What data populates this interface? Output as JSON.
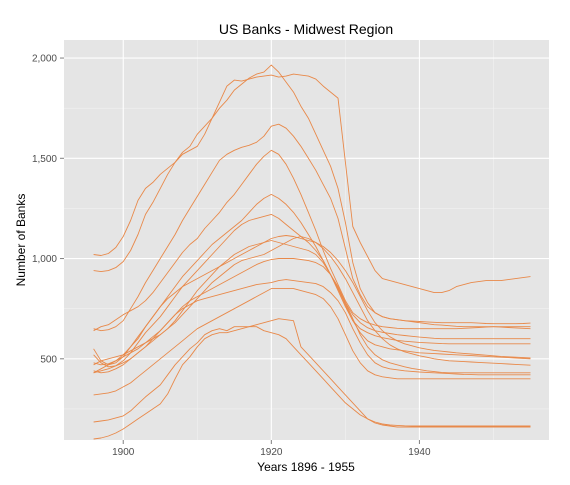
{
  "chart_data": {
    "type": "line",
    "title": "US Banks - Midwest Region",
    "xlabel": "Years 1896 - 1955",
    "ylabel": "Number of Banks",
    "xlim": [
      1892,
      1957.5
    ],
    "ylim": [
      95,
      2090
    ],
    "x_ticks": [
      1900,
      1920,
      1940
    ],
    "x_tick_labels": [
      "1900",
      "1920",
      "1940"
    ],
    "y_ticks": [
      500,
      1000,
      1500,
      2000
    ],
    "y_tick_labels": [
      "500",
      "1,000",
      "1,500",
      "2,000"
    ],
    "grid": true,
    "legend": "none",
    "line_color": "#e8894a",
    "panel_color": "#e5e5e5",
    "grid_color": "#ffffff",
    "x": [
      1896,
      1897,
      1898,
      1899,
      1900,
      1901,
      1902,
      1903,
      1904,
      1905,
      1906,
      1907,
      1908,
      1909,
      1910,
      1911,
      1912,
      1913,
      1914,
      1915,
      1916,
      1917,
      1918,
      1919,
      1920,
      1921,
      1922,
      1923,
      1924,
      1925,
      1926,
      1927,
      1928,
      1929,
      1930,
      1931,
      1932,
      1933,
      1934,
      1935,
      1936,
      1937,
      1938,
      1939,
      1940,
      1941,
      1942,
      1943,
      1944,
      1945,
      1946,
      1947,
      1948,
      1949,
      1950,
      1951,
      1952,
      1953,
      1954,
      1955
    ],
    "series": [
      {
        "values": [
          1020,
          1015,
          1025,
          1055,
          1110,
          1190,
          1290,
          1350,
          1380,
          1420,
          1450,
          1480,
          1520,
          1540,
          1560,
          1620,
          1700,
          1780,
          1860,
          1890,
          1885,
          1895,
          1905,
          1910,
          1915,
          1905,
          1910,
          1920,
          1915,
          1910,
          1895,
          1860,
          1830,
          1800,
          1480,
          1160,
          1080,
          1010,
          940,
          900,
          890,
          880,
          870,
          860,
          850,
          840,
          830,
          830,
          840,
          860,
          870,
          880,
          885,
          890,
          890,
          890,
          895,
          900,
          905,
          910
        ]
      },
      {
        "values": [
          940,
          935,
          940,
          955,
          985,
          1040,
          1120,
          1220,
          1280,
          1350,
          1420,
          1480,
          1530,
          1560,
          1620,
          1660,
          1700,
          1750,
          1790,
          1840,
          1870,
          1900,
          1920,
          1930,
          1965,
          1930,
          1880,
          1830,
          1760,
          1700,
          1620,
          1540,
          1460,
          1350,
          1180,
          980,
          850,
          780,
          730,
          710,
          700,
          695,
          690,
          685,
          680,
          675,
          670,
          668,
          665,
          662,
          660,
          660,
          660,
          660,
          660,
          658,
          656,
          654,
          652,
          650
        ]
      },
      {
        "values": [
          650,
          640,
          645,
          660,
          690,
          750,
          810,
          880,
          940,
          1000,
          1060,
          1120,
          1190,
          1250,
          1310,
          1370,
          1430,
          1490,
          1520,
          1540,
          1555,
          1565,
          1580,
          1610,
          1660,
          1670,
          1650,
          1610,
          1560,
          1500,
          1440,
          1370,
          1300,
          1200,
          1050,
          900,
          820,
          760,
          730,
          710,
          700,
          695,
          690,
          688,
          686,
          684,
          682,
          680,
          680,
          680,
          680,
          680,
          678,
          676,
          675,
          675,
          675,
          675,
          676,
          678
        ]
      },
      {
        "values": [
          640,
          660,
          670,
          695,
          720,
          740,
          760,
          790,
          830,
          880,
          930,
          980,
          1030,
          1070,
          1100,
          1150,
          1190,
          1230,
          1280,
          1320,
          1370,
          1420,
          1470,
          1510,
          1540,
          1520,
          1470,
          1400,
          1320,
          1230,
          1140,
          1040,
          950,
          870,
          790,
          730,
          700,
          680,
          668,
          660,
          656,
          652,
          650,
          650,
          650,
          650,
          650,
          650,
          650,
          650,
          652,
          654,
          656,
          658,
          660,
          660,
          660,
          660,
          660,
          660
        ]
      },
      {
        "values": [
          550,
          490,
          470,
          480,
          510,
          560,
          600,
          660,
          710,
          760,
          810,
          860,
          910,
          950,
          990,
          1030,
          1070,
          1100,
          1130,
          1160,
          1190,
          1230,
          1270,
          1300,
          1320,
          1300,
          1270,
          1230,
          1180,
          1120,
          1060,
          990,
          920,
          850,
          780,
          720,
          680,
          655,
          640,
          632,
          626,
          620,
          616,
          612,
          608,
          605,
          602,
          600,
          600,
          600,
          600,
          600,
          600,
          600,
          600,
          600,
          600,
          600,
          600,
          600
        ]
      },
      {
        "values": [
          520,
          480,
          460,
          465,
          490,
          530,
          580,
          630,
          670,
          710,
          760,
          810,
          860,
          900,
          940,
          980,
          1020,
          1060,
          1100,
          1140,
          1170,
          1190,
          1200,
          1210,
          1220,
          1200,
          1170,
          1140,
          1110,
          1080,
          1040,
          990,
          920,
          840,
          760,
          690,
          650,
          630,
          615,
          605,
          598,
          592,
          588,
          585,
          582,
          580,
          578,
          576,
          575,
          575,
          575,
          575,
          575,
          575,
          575,
          575,
          575,
          575,
          575,
          575
        ]
      },
      {
        "values": [
          470,
          490,
          500,
          510,
          520,
          540,
          560,
          580,
          600,
          620,
          650,
          690,
          740,
          790,
          840,
          880,
          920,
          960,
          990,
          1020,
          1040,
          1060,
          1070,
          1080,
          1090,
          1080,
          1070,
          1060,
          1050,
          1040,
          1020,
          980,
          920,
          850,
          770,
          690,
          630,
          590,
          570,
          560,
          550,
          545,
          540,
          535,
          530,
          528,
          526,
          524,
          522,
          520,
          518,
          516,
          514,
          512,
          510,
          508,
          506,
          504,
          502,
          500
        ]
      },
      {
        "values": [
          430,
          450,
          470,
          490,
          520,
          560,
          610,
          660,
          710,
          760,
          800,
          830,
          860,
          880,
          900,
          920,
          940,
          960,
          980,
          1000,
          1020,
          1040,
          1060,
          1080,
          1100,
          1110,
          1115,
          1110,
          1100,
          1090,
          1080,
          1060,
          1030,
          990,
          940,
          880,
          810,
          740,
          680,
          640,
          610,
          590,
          575,
          565,
          555,
          548,
          542,
          538,
          534,
          530,
          527,
          524,
          521,
          518,
          515,
          512,
          510,
          508,
          506,
          504
        ]
      },
      {
        "values": [
          430,
          440,
          450,
          465,
          480,
          500,
          530,
          560,
          590,
          620,
          650,
          680,
          720,
          760,
          800,
          840,
          880,
          910,
          940,
          970,
          990,
          1000,
          1010,
          1020,
          1040,
          1060,
          1080,
          1100,
          1110,
          1100,
          1080,
          1050,
          1010,
          960,
          900,
          830,
          760,
          690,
          640,
          600,
          570,
          550,
          535,
          525,
          515,
          508,
          500,
          495,
          490,
          488,
          486,
          484,
          482,
          480,
          478,
          476,
          474,
          472,
          470,
          468
        ]
      },
      {
        "values": [
          480,
          470,
          475,
          490,
          510,
          530,
          550,
          580,
          610,
          640,
          680,
          720,
          760,
          790,
          810,
          830,
          850,
          870,
          890,
          910,
          930,
          950,
          970,
          985,
          995,
          1000,
          1000,
          1000,
          995,
          990,
          980,
          960,
          920,
          860,
          780,
          700,
          620,
          560,
          520,
          495,
          480,
          470,
          460,
          452,
          446,
          440,
          436,
          432,
          430,
          430,
          430,
          430,
          430,
          430,
          430,
          430,
          430,
          430,
          430,
          430
        ]
      },
      {
        "values": [
          440,
          430,
          435,
          450,
          470,
          500,
          530,
          560,
          600,
          640,
          680,
          720,
          750,
          770,
          790,
          800,
          810,
          820,
          830,
          840,
          850,
          860,
          870,
          875,
          880,
          890,
          895,
          890,
          885,
          880,
          875,
          860,
          830,
          790,
          730,
          650,
          580,
          520,
          480,
          460,
          450,
          445,
          440,
          437,
          434,
          432,
          430,
          428,
          426,
          424,
          422,
          421,
          420,
          420,
          420,
          420,
          420,
          420,
          420,
          420
        ]
      },
      {
        "values": [
          320,
          325,
          330,
          340,
          360,
          380,
          410,
          440,
          470,
          500,
          530,
          560,
          590,
          620,
          650,
          670,
          690,
          710,
          730,
          750,
          770,
          790,
          810,
          830,
          850,
          850,
          850,
          850,
          840,
          830,
          820,
          800,
          760,
          700,
          620,
          540,
          480,
          440,
          420,
          410,
          405,
          400,
          400,
          400,
          400,
          400,
          400,
          400,
          400,
          400,
          400,
          400,
          400,
          400,
          400,
          400,
          400,
          400,
          400,
          400
        ]
      },
      {
        "values": [
          185,
          190,
          195,
          205,
          215,
          240,
          275,
          310,
          340,
          370,
          420,
          470,
          510,
          550,
          580,
          620,
          640,
          650,
          640,
          660,
          660,
          660,
          670,
          680,
          690,
          700,
          695,
          690,
          560,
          520,
          480,
          440,
          400,
          360,
          320,
          280,
          240,
          200,
          180,
          170,
          165,
          160,
          160,
          160,
          160,
          160,
          160,
          160,
          160,
          160,
          160,
          160,
          160,
          160,
          160,
          160,
          160,
          160,
          160,
          160
        ]
      },
      {
        "values": [
          100,
          105,
          115,
          130,
          150,
          175,
          200,
          225,
          250,
          275,
          325,
          400,
          470,
          510,
          560,
          600,
          620,
          630,
          630,
          640,
          650,
          660,
          660,
          640,
          630,
          620,
          600,
          560,
          520,
          480,
          440,
          400,
          360,
          320,
          280,
          250,
          220,
          200,
          185,
          175,
          170,
          168,
          166,
          165,
          165,
          165,
          165,
          165,
          165,
          165,
          165,
          165,
          165,
          165,
          165,
          165,
          165,
          165,
          165,
          165
        ]
      }
    ]
  }
}
